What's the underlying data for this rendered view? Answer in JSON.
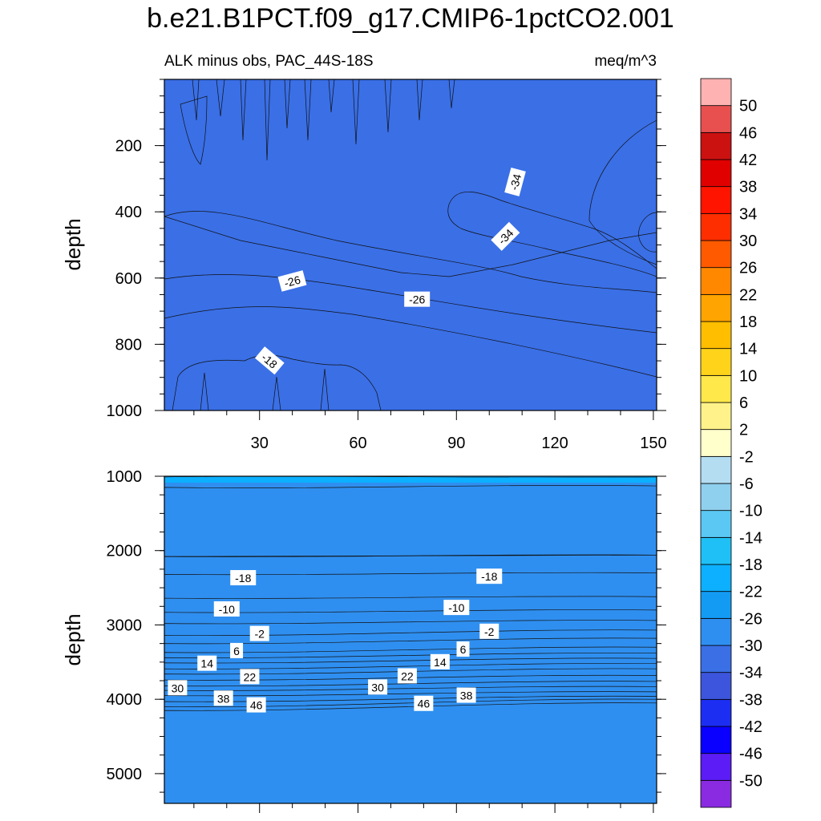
{
  "title": "b.e21.B1PCT.f09_g17.CMIP6-1pctCO2.001",
  "subtitle_left": "ALK minus obs, PAC_44S-18S",
  "subtitle_right": "meq/m^3",
  "colors": [
    "#8a2be2",
    "#5b1cf5",
    "#0a00ff",
    "#1c2ef2",
    "#3c55dc",
    "#3a6fe6",
    "#2f8ff0",
    "#139bf4",
    "#0cb0ff",
    "#1ec0f5",
    "#5ac8f2",
    "#8fd0ee",
    "#b4ddf2",
    "#ffffcc",
    "#fff28a",
    "#ffe84a",
    "#ffd31a",
    "#ffbe00",
    "#ffa400",
    "#ff8800",
    "#ff5a00",
    "#ff2e00",
    "#ff1400",
    "#e00000",
    "#cc1111",
    "#e85050",
    "#ffb2b2"
  ],
  "colorbar_labels": [
    "50",
    "46",
    "42",
    "38",
    "34",
    "30",
    "26",
    "22",
    "18",
    "14",
    "10",
    "6",
    "2",
    "-2",
    "-6",
    "-10",
    "-14",
    "-18",
    "-22",
    "-26",
    "-30",
    "-34",
    "-38",
    "-42",
    "-46",
    "-50"
  ],
  "chart_data": [
    {
      "type": "heatmap",
      "panel": "top",
      "ylabel": "depth",
      "xlim": [
        1,
        151
      ],
      "ylim": [
        1000,
        0
      ],
      "xticks": [
        30,
        60,
        90,
        120,
        150
      ],
      "xtick_labels": [
        "30",
        "60",
        "90",
        "120",
        "150"
      ],
      "yticks": [
        200,
        400,
        600,
        800,
        1000
      ],
      "ytick_labels": [
        "200",
        "400",
        "600",
        "800",
        "1000"
      ],
      "contour_labels": [
        {
          "text": "-34",
          "x": 108,
          "y": 310,
          "angle": 75
        },
        {
          "text": "-34",
          "x": 105,
          "y": 475,
          "angle": 45
        },
        {
          "text": "-26",
          "x": 40,
          "y": 610,
          "angle": 15
        },
        {
          "text": "-26",
          "x": 78,
          "y": 665,
          "angle": 0
        },
        {
          "text": "-18",
          "x": 33,
          "y": 850,
          "angle": -40
        }
      ]
    },
    {
      "type": "heatmap",
      "panel": "bottom",
      "ylabel": "depth",
      "xlim": [
        1,
        151
      ],
      "ylim": [
        5400,
        1000
      ],
      "xticks": [
        30,
        60,
        90,
        120,
        150
      ],
      "yticks": [
        1000,
        2000,
        3000,
        4000,
        5000
      ],
      "ytick_labels": [
        "1000",
        "2000",
        "3000",
        "4000",
        "5000"
      ],
      "contour_labels": [
        {
          "text": "-18",
          "x": 25,
          "y": 2370
        },
        {
          "text": "-18",
          "x": 100,
          "y": 2350
        },
        {
          "text": "-10",
          "x": 20,
          "y": 2790
        },
        {
          "text": "-10",
          "x": 90,
          "y": 2770
        },
        {
          "text": "-2",
          "x": 30,
          "y": 3120
        },
        {
          "text": "-2",
          "x": 100,
          "y": 3090
        },
        {
          "text": "6",
          "x": 23,
          "y": 3350
        },
        {
          "text": "6",
          "x": 92,
          "y": 3330
        },
        {
          "text": "14",
          "x": 14,
          "y": 3520
        },
        {
          "text": "14",
          "x": 85,
          "y": 3500
        },
        {
          "text": "22",
          "x": 27,
          "y": 3700
        },
        {
          "text": "22",
          "x": 75,
          "y": 3690
        },
        {
          "text": "30",
          "x": 5,
          "y": 3850
        },
        {
          "text": "30",
          "x": 66,
          "y": 3840
        },
        {
          "text": "38",
          "x": 19,
          "y": 3990
        },
        {
          "text": "38",
          "x": 93,
          "y": 3950
        },
        {
          "text": "46",
          "x": 29,
          "y": 4080
        },
        {
          "text": "46",
          "x": 80,
          "y": 4060
        }
      ]
    }
  ]
}
